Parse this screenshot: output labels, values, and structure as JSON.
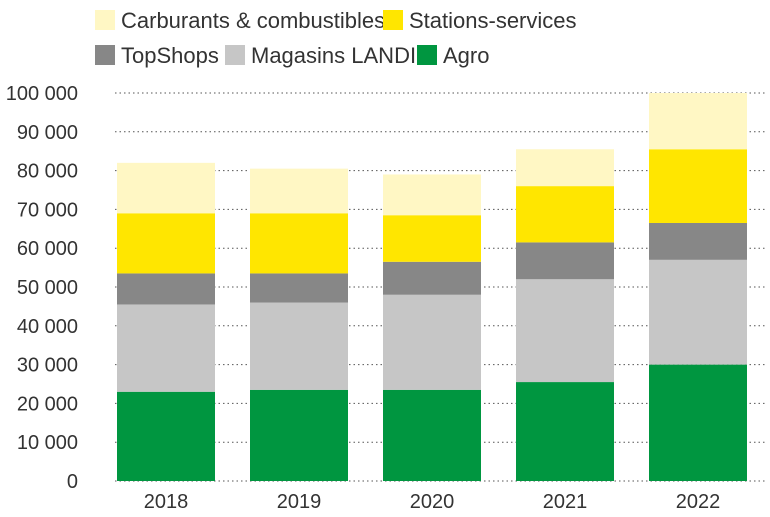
{
  "chart_data": {
    "type": "bar",
    "stacked": true,
    "title": "",
    "xlabel": "",
    "ylabel": "",
    "categories": [
      "2018",
      "2019",
      "2020",
      "2021",
      "2022"
    ],
    "ylim": [
      0,
      100000
    ],
    "yticks": [
      0,
      10000,
      20000,
      30000,
      40000,
      50000,
      60000,
      70000,
      80000,
      90000,
      100000
    ],
    "ytick_labels": [
      "0",
      "10 000",
      "20 000",
      "30 000",
      "40 000",
      "50 000",
      "60 000",
      "70 000",
      "80 000",
      "90 000",
      "100 000"
    ],
    "grid": "horizontal dotted",
    "legend_position": "top-left",
    "series": [
      {
        "name": "Agro",
        "color": "#009640",
        "values": [
          23000,
          23500,
          23500,
          25500,
          30000
        ]
      },
      {
        "name": "Magasins LANDI",
        "color": "#c6c6c6",
        "values": [
          22500,
          22500,
          24500,
          26500,
          27000
        ]
      },
      {
        "name": "TopShops",
        "color": "#878787",
        "values": [
          8000,
          7500,
          8500,
          9500,
          9500
        ]
      },
      {
        "name": "Stations-services",
        "color": "#ffe600",
        "values": [
          15500,
          15500,
          12000,
          14500,
          19000
        ]
      },
      {
        "name": "Carburants & combustibles",
        "color": "#fff7c4",
        "values": [
          13000,
          11500,
          10500,
          9500,
          14500
        ]
      }
    ],
    "legend_order": [
      "Carburants & combustibles",
      "Stations-services",
      "TopShops",
      "Magasins LANDI",
      "Agro"
    ]
  }
}
